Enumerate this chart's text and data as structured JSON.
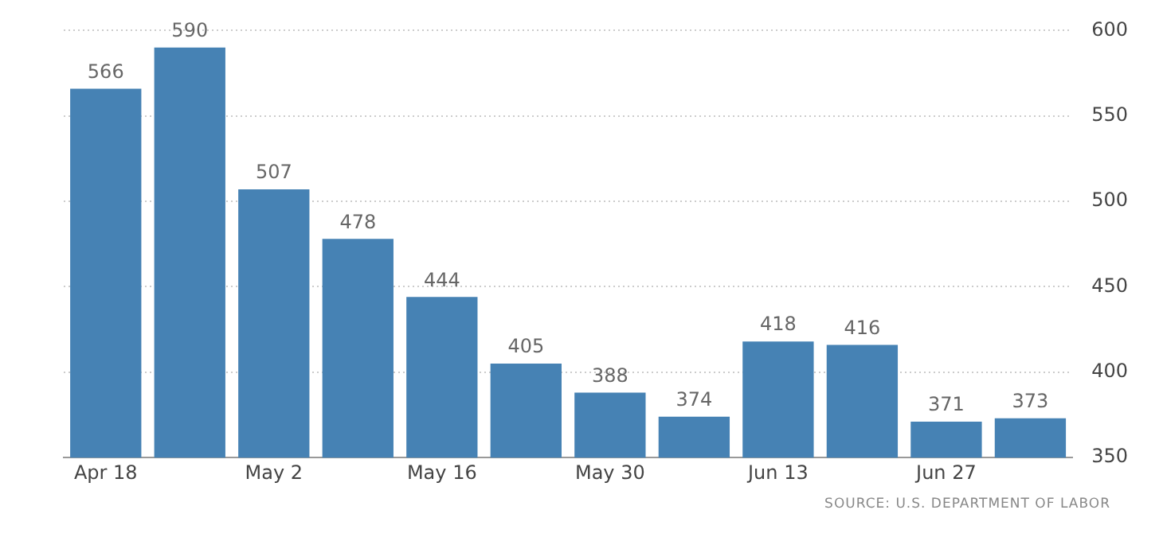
{
  "chart_data": {
    "type": "bar",
    "categories": [
      "Apr 18",
      null,
      "May 2",
      null,
      "May 16",
      null,
      "May 30",
      null,
      "Jun 13",
      null,
      "Jun 27",
      null
    ],
    "values": [
      566,
      590,
      507,
      478,
      444,
      405,
      388,
      374,
      418,
      416,
      371,
      373
    ],
    "color": "#4682b4",
    "ylim": [
      350,
      600
    ],
    "yticks": [
      350,
      400,
      450,
      500,
      550,
      600
    ],
    "grid": "y",
    "data_labels": true,
    "annotations": [
      "SOURCE: U.S. DEPARTMENT OF LABOR"
    ]
  }
}
